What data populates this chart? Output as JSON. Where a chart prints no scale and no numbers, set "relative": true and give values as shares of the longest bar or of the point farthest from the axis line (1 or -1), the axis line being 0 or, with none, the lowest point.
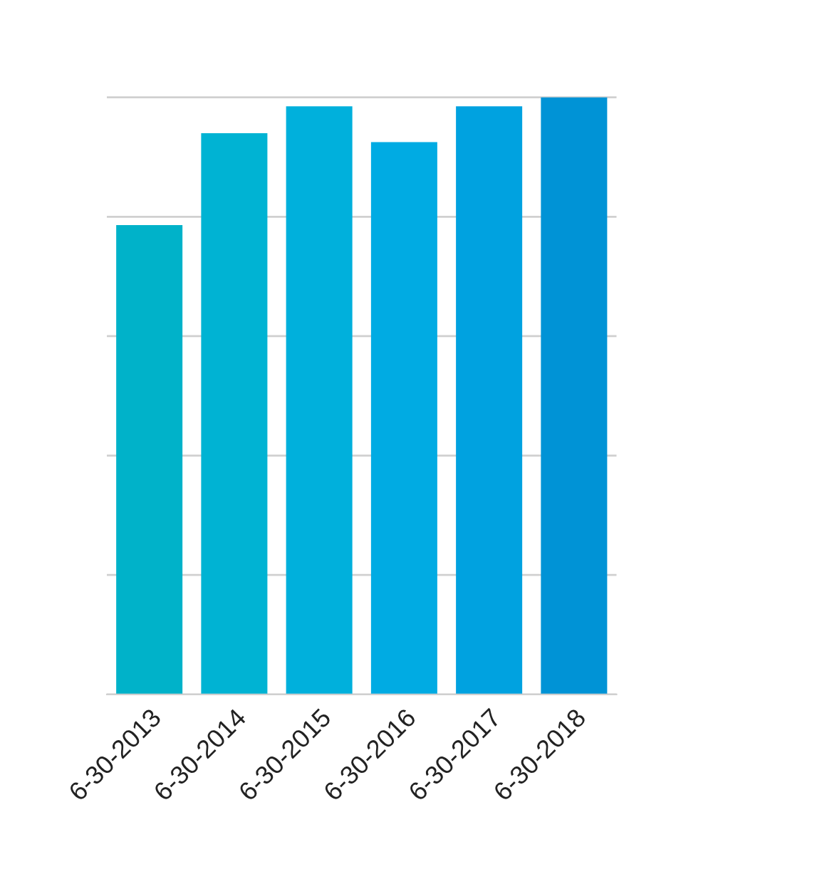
{
  "chart_data": {
    "type": "bar",
    "relative": true,
    "grid": "y",
    "categories": [
      "6-30-2013",
      "6-30-2014",
      "6-30-2015",
      "6-30-2016",
      "6-30-2017",
      "6-30-2018"
    ],
    "values": [
      0.786,
      0.94,
      0.985,
      0.925,
      0.985,
      1.0
    ],
    "colors": [
      "#00b2c9",
      "#00b3d3",
      "#00b0dc",
      "#00abe3",
      "#00a2e0",
      "#0093d6"
    ]
  }
}
